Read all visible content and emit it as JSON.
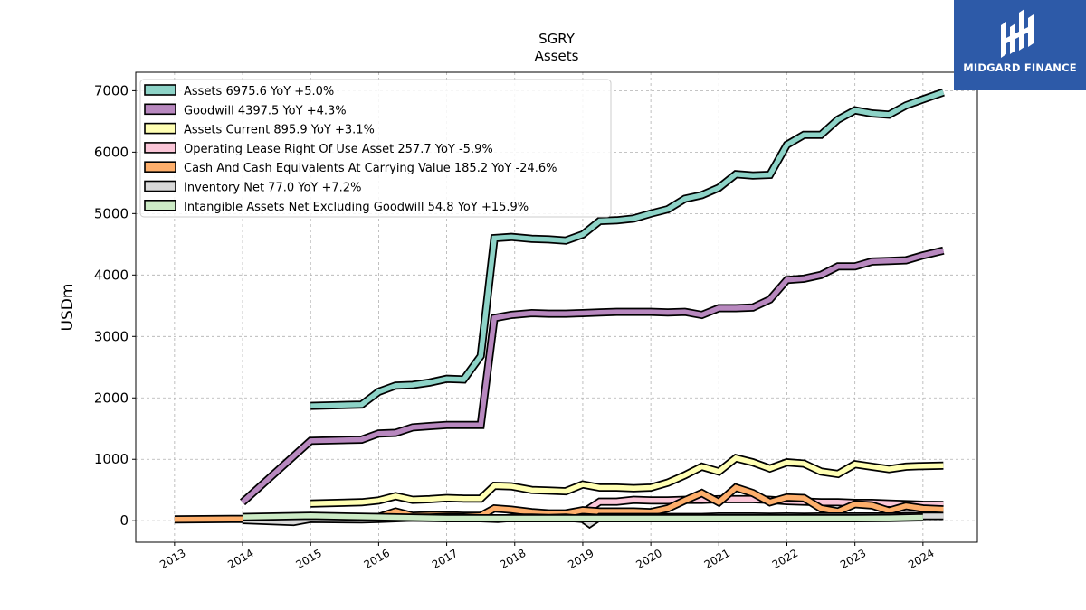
{
  "logo": {
    "text": "MIDGARD FINANCE",
    "icon": "midgard-logo-icon",
    "color": "#2d5aa8"
  },
  "chart_data": {
    "type": "line",
    "title": "SGRY",
    "subtitle": "Assets",
    "xlabel": "",
    "ylabel": "USDm",
    "xlim": [
      2012.43,
      2024.8
    ],
    "ylim": [
      -350,
      7300
    ],
    "xticks": [
      "2013",
      "2014",
      "2015",
      "2016",
      "2017",
      "2018",
      "2019",
      "2020",
      "2021",
      "2022",
      "2023",
      "2024"
    ],
    "yticks": [
      0,
      1000,
      2000,
      3000,
      4000,
      5000,
      6000,
      7000
    ],
    "grid": true,
    "legend_position": "top-left",
    "series": [
      {
        "name": "Assets",
        "legend_label": "Assets  6975.6 YoY +5.0%",
        "color": "#8dd3c7",
        "x": [
          2015.0,
          2015.75,
          2016.0,
          2016.25,
          2016.5,
          2016.75,
          2017.0,
          2017.25,
          2017.5,
          2017.7,
          2017.95,
          2018.25,
          2018.5,
          2018.75,
          2019.0,
          2019.25,
          2019.5,
          2019.75,
          2020.0,
          2020.25,
          2020.5,
          2020.75,
          2021.0,
          2021.25,
          2021.5,
          2021.75,
          2022.0,
          2022.25,
          2022.5,
          2022.75,
          2023.0,
          2023.25,
          2023.5,
          2023.75,
          2024.0,
          2024.3
        ],
        "y": [
          1870,
          1890,
          2100,
          2200,
          2210,
          2250,
          2310,
          2300,
          2680,
          4600,
          4620,
          4590,
          4580,
          4560,
          4660,
          4880,
          4890,
          4920,
          5000,
          5070,
          5240,
          5300,
          5420,
          5640,
          5620,
          5630,
          6120,
          6280,
          6280,
          6530,
          6680,
          6630,
          6610,
          6760,
          6860,
          6975.6
        ]
      },
      {
        "name": "Goodwill",
        "legend_label": "Goodwill  4397.5 YoY +4.3%",
        "color": "#b888bf",
        "x": [
          2014.0,
          2015.0,
          2015.75,
          2016.0,
          2016.25,
          2016.5,
          2016.75,
          2017.0,
          2017.25,
          2017.5,
          2017.7,
          2017.95,
          2018.25,
          2018.5,
          2018.75,
          2019.0,
          2019.25,
          2019.5,
          2019.75,
          2020.0,
          2020.25,
          2020.5,
          2020.75,
          2021.0,
          2021.25,
          2021.5,
          2021.75,
          2022.0,
          2022.25,
          2022.5,
          2022.75,
          2023.0,
          2023.25,
          2023.5,
          2023.75,
          2024.0,
          2024.3
        ],
        "y": [
          300,
          1300,
          1320,
          1420,
          1430,
          1520,
          1540,
          1560,
          1560,
          1560,
          3300,
          3350,
          3380,
          3370,
          3370,
          3380,
          3390,
          3400,
          3400,
          3400,
          3390,
          3400,
          3350,
          3460,
          3460,
          3470,
          3600,
          3920,
          3940,
          4000,
          4140,
          4140,
          4220,
          4230,
          4240,
          4320,
          4397.5
        ]
      },
      {
        "name": "Assets Current",
        "legend_label": "Assets Current  895.9 YoY +3.1%",
        "color": "#ffffb3",
        "x": [
          2015.0,
          2015.75,
          2016.0,
          2016.25,
          2016.5,
          2016.75,
          2017.0,
          2017.25,
          2017.5,
          2017.7,
          2017.95,
          2018.25,
          2018.5,
          2018.75,
          2019.0,
          2019.25,
          2019.5,
          2019.75,
          2020.0,
          2020.25,
          2020.5,
          2020.75,
          2021.0,
          2021.25,
          2021.5,
          2021.75,
          2022.0,
          2022.25,
          2022.5,
          2022.75,
          2023.0,
          2023.25,
          2023.5,
          2023.75,
          2024.0,
          2024.3
        ],
        "y": [
          280,
          300,
          330,
          400,
          340,
          350,
          370,
          360,
          360,
          570,
          560,
          500,
          490,
          480,
          590,
          540,
          540,
          530,
          540,
          620,
          740,
          880,
          800,
          1020,
          950,
          850,
          950,
          930,
          800,
          760,
          920,
          880,
          840,
          880,
          890,
          895.9
        ]
      },
      {
        "name": "Operating Lease Right Of Use Asset",
        "legend_label": "Operating Lease Right Of Use Asset  257.7 YoY -5.9%",
        "color": "#fbc6d8",
        "x": [
          2019.0,
          2019.25,
          2019.5,
          2019.75,
          2020.0,
          2020.25,
          2020.5,
          2020.75,
          2021.0,
          2021.25,
          2021.5,
          2021.75,
          2022.0,
          2022.25,
          2022.5,
          2022.75,
          2023.0,
          2023.25,
          2023.5,
          2023.75,
          2024.0,
          2024.3
        ],
        "y": [
          130,
          310,
          310,
          340,
          330,
          330,
          340,
          340,
          350,
          350,
          350,
          340,
          320,
          310,
          300,
          300,
          290,
          290,
          280,
          270,
          260,
          257.7
        ]
      },
      {
        "name": "Cash And Cash Equivalents At Carrying Value",
        "legend_label": "Cash And Cash Equivalents At Carrying Value  185.2 YoY -24.6%",
        "color": "#fdae6b",
        "x": [
          2013.0,
          2014.0,
          2015.0,
          2015.75,
          2016.0,
          2016.25,
          2016.5,
          2016.75,
          2017.0,
          2017.25,
          2017.5,
          2017.7,
          2017.95,
          2018.25,
          2018.5,
          2018.75,
          2019.0,
          2019.25,
          2019.5,
          2019.75,
          2020.0,
          2020.25,
          2020.5,
          2020.75,
          2021.0,
          2021.25,
          2021.5,
          2021.75,
          2022.0,
          2022.25,
          2022.5,
          2022.75,
          2023.0,
          2023.25,
          2023.5,
          2023.75,
          2024.0,
          2024.3
        ],
        "y": [
          20,
          30,
          60,
          50,
          60,
          150,
          80,
          90,
          90,
          80,
          80,
          200,
          180,
          140,
          120,
          120,
          170,
          150,
          150,
          150,
          140,
          200,
          330,
          450,
          300,
          540,
          450,
          300,
          380,
          370,
          200,
          150,
          270,
          250,
          160,
          240,
          200,
          185.2
        ]
      },
      {
        "name": "Inventory Net",
        "legend_label": "Inventory Net  77.0 YoY +7.2%",
        "color": "#d9d9d9",
        "x": [
          2014.0,
          2014.75,
          2015.0,
          2015.75,
          2016.0,
          2016.25,
          2016.5,
          2016.75,
          2017.0,
          2017.25,
          2017.5,
          2017.75,
          2018.0,
          2018.25,
          2018.5,
          2018.75,
          2019.0,
          2019.1,
          2019.25,
          2019.5,
          2019.75,
          2020.0,
          2020.25,
          2020.5,
          2020.75,
          2021.0,
          2021.25,
          2021.5,
          2021.75,
          2022.0,
          2022.25,
          2022.5,
          2022.75,
          2023.0,
          2023.25,
          2023.5,
          2023.75,
          2024.0,
          2024.3
        ],
        "y": [
          10,
          -20,
          30,
          20,
          30,
          40,
          50,
          50,
          60,
          55,
          40,
          30,
          50,
          50,
          45,
          50,
          30,
          -50,
          60,
          60,
          60,
          60,
          60,
          60,
          60,
          70,
          70,
          70,
          65,
          70,
          65,
          70,
          70,
          70,
          70,
          70,
          75,
          76,
          77.0
        ]
      },
      {
        "name": "Intangible Assets Net Excluding Goodwill",
        "legend_label": "Intangible Assets Net Excluding Goodwill  54.8 YoY +15.9%",
        "color": "#ccebc5",
        "x": [
          2014.0,
          2015.0,
          2016.0,
          2017.0,
          2018.0,
          2019.0,
          2020.0,
          2021.0,
          2022.0,
          2023.0,
          2023.5,
          2024.0
        ],
        "y": [
          60,
          80,
          60,
          40,
          40,
          40,
          40,
          40,
          40,
          40,
          45,
          54.8
        ]
      }
    ]
  }
}
